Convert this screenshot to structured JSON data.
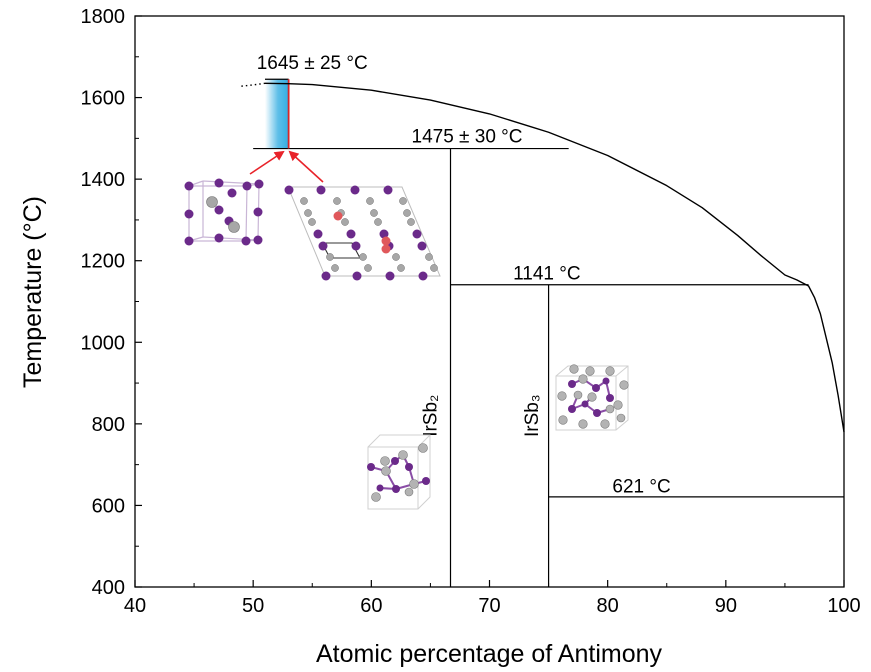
{
  "chart_data": {
    "type": "line",
    "title": "",
    "xlabel": "Atomic percentage of Antimony",
    "ylabel": "Temperature (°C)",
    "xlim": [
      40,
      100
    ],
    "ylim": [
      400,
      1800
    ],
    "xticks": [
      40,
      50,
      60,
      70,
      80,
      90,
      100
    ],
    "yticks": [
      400,
      600,
      800,
      1000,
      1200,
      1400,
      1600,
      1800
    ],
    "grid": false,
    "legend": "none",
    "series": [
      {
        "style": "dotted",
        "x": [
          49.0,
          50.0,
          51.0
        ],
        "y": [
          1628,
          1631,
          1635
        ]
      },
      {
        "style": "solid",
        "x": [
          51.0,
          53.0,
          55.0,
          60.0,
          65.0,
          70.0,
          75.0,
          80.0,
          85.0,
          88.0,
          91.0,
          93.0,
          95.0,
          96.0,
          97.0,
          97.5,
          98.0,
          98.5,
          99.0,
          99.5,
          100.0
        ],
        "y": [
          1635,
          1634,
          1632,
          1618,
          1594,
          1560,
          1515,
          1458,
          1384,
          1330,
          1262,
          1212,
          1165,
          1153,
          1138,
          1110,
          1070,
          1010,
          950,
          870,
          780
        ]
      }
    ],
    "horizontal_lines": [
      {
        "y": 1645,
        "x_from": 51.0,
        "x_to": 53.0
      },
      {
        "y": 1475,
        "x_from": 50.0,
        "x_to": 76.7
      },
      {
        "y": 1141,
        "x_from": 66.7,
        "x_to": 97.0
      },
      {
        "y": 621,
        "x_from": 75.0,
        "x_to": 100.0
      }
    ],
    "vertical_lines": [
      {
        "x": 53.0,
        "y_from": 1475,
        "y_to": 1645,
        "color": "#d62728"
      },
      {
        "x": 66.7,
        "y_from": 400,
        "y_to": 1475
      },
      {
        "x": 75.0,
        "y_from": 400,
        "y_to": 1141
      }
    ],
    "shaded_region": {
      "x_from": 51.0,
      "x_to": 53.0,
      "y_from": 1475,
      "y_to": 1645,
      "color": "#29a9e0"
    },
    "annotations": [
      {
        "text": "1645 ± 25 °C",
        "x": 50.3,
        "y": 1670
      },
      {
        "text": "1475 ± 30 °C",
        "x": 63.4,
        "y": 1490
      },
      {
        "text": "1141 °C",
        "x": 72.0,
        "y": 1154
      },
      {
        "text": "621 °C",
        "x": 80.4,
        "y": 632
      }
    ],
    "phase_labels": [
      {
        "text": "IrSb₂",
        "x": 65.5,
        "y": 820
      },
      {
        "text": "IrSb₃",
        "x": 74.1,
        "y": 820
      }
    ]
  },
  "colors": {
    "axis": "#000000",
    "line": "#000000",
    "bracket": "#d62728",
    "arrow": "#e8232a",
    "fill": "#29a9e0",
    "atom_ir": "#6b2a8a",
    "atom_sb": "#a7a7a7",
    "atom_highlight": "#e0585b"
  },
  "icons": [
    "crystal-structure-cubic",
    "crystal-structure-layered",
    "crystal-structure-irsb2",
    "crystal-structure-irsb3"
  ]
}
